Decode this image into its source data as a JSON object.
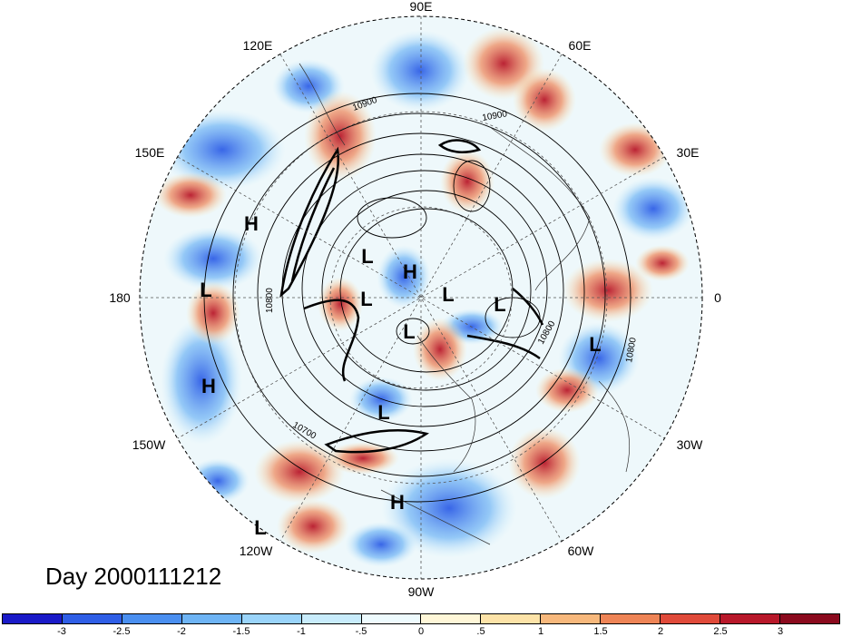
{
  "title": "Day 2000111212",
  "longitude_labels": {
    "top": "90E",
    "top_right": "60E",
    "right_upper": "30E",
    "right": "0",
    "right_lower": "30W",
    "bottom_right": "60W",
    "bottom": "90W",
    "bottom_left": "120W",
    "left_lower": "150W",
    "left": "180",
    "left_upper": "150E",
    "top_left": "120E"
  },
  "contour_labels": [
    "10900",
    "10900",
    "10800",
    "10800",
    "10700",
    "10800"
  ],
  "pressure_centers": [
    "H",
    "L",
    "H",
    "L",
    "H",
    "L",
    "L",
    "L",
    "L",
    "L",
    "L",
    "H",
    "L"
  ],
  "colorbar": {
    "ticks": [
      "-3",
      "-2.5",
      "-2",
      "-1.5",
      "-1",
      "-.5",
      "0",
      ".5",
      "1",
      "1.5",
      "2",
      "2.5",
      "3"
    ],
    "colors": [
      "#1a1ac8",
      "#2f5ee6",
      "#4a8ff0",
      "#6eb4f5",
      "#9ad4fa",
      "#c8ecfc",
      "#eefbfe",
      "#fff7d8",
      "#fde3a8",
      "#f7b87c",
      "#ee8456",
      "#e04a3a",
      "#b8182a",
      "#8b0a1e"
    ]
  }
}
